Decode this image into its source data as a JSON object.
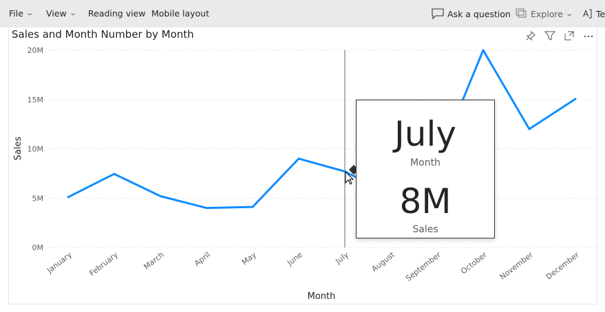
{
  "toolbar": {
    "file": "File",
    "view": "View",
    "reading_view": "Reading view",
    "mobile_layout": "Mobile layout",
    "ask_question": "Ask a question",
    "explore": "Explore",
    "text_partial": "Te"
  },
  "visual": {
    "title": "Sales and Month Number by Month",
    "icons": [
      "pin-icon",
      "filter-icon",
      "focus-mode-icon",
      "more-options-icon"
    ]
  },
  "tooltip": {
    "value1": "July",
    "label1": "Month",
    "value2": "8M",
    "label2": "Sales"
  },
  "colors": {
    "line": "#118DFF",
    "crosshair": "#999999"
  },
  "chart_data": {
    "type": "line",
    "xlabel": "Month",
    "ylabel": "Sales",
    "ylim": [
      0,
      20000000
    ],
    "yticks": [
      {
        "v": 0,
        "label": "0M"
      },
      {
        "v": 5000000,
        "label": "5M"
      },
      {
        "v": 10000000,
        "label": "10M"
      },
      {
        "v": 15000000,
        "label": "15M"
      },
      {
        "v": 20000000,
        "label": "20M"
      }
    ],
    "grid": true,
    "categories": [
      "January",
      "February",
      "March",
      "April",
      "May",
      "June",
      "July",
      "August",
      "September",
      "October",
      "November",
      "December"
    ],
    "series": [
      {
        "values": [
          5100000,
          7450000,
          5200000,
          4000000,
          4100000,
          9000000,
          7700000,
          5300000,
          8600000,
          20000000,
          12000000,
          15050000
        ]
      }
    ],
    "highlighted": "July"
  }
}
